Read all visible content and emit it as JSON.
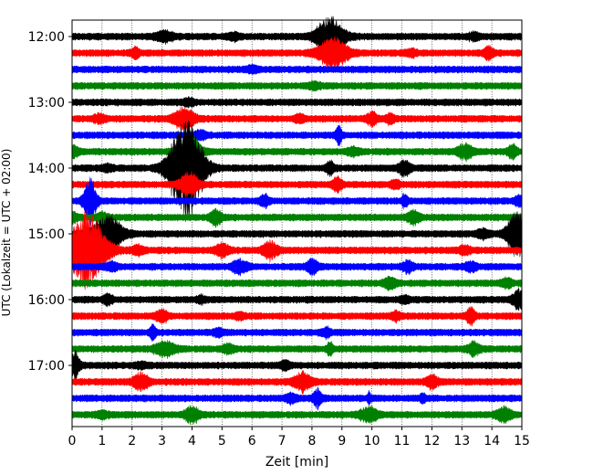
{
  "chart_data": {
    "type": "line",
    "title": "",
    "xlabel": "Zeit  [min]",
    "ylabel": "UTC (Lokalzeit = UTC + 02:00)",
    "xlim": [
      0,
      15
    ],
    "x_ticks": [
      "0",
      "1",
      "2",
      "3",
      "4",
      "5",
      "6",
      "7",
      "8",
      "9",
      "10",
      "11",
      "12",
      "13",
      "14",
      "15"
    ],
    "y_ticks": [
      "12:00",
      "13:00",
      "14:00",
      "15:00",
      "16:00",
      "17:00"
    ],
    "grid": "vertical dotted lines at each minute",
    "trace_colors": [
      "#000000",
      "#ff0000",
      "#0000ff",
      "#008000"
    ],
    "rows_per_hour": 4,
    "start_time": "12:00",
    "end_time": "17:45",
    "traces": [
      {
        "row": 0,
        "time": "12:00",
        "color": "#000000",
        "events": [
          [
            3.1,
            0.25,
            0.3
          ],
          [
            8.6,
            1.0,
            0.45
          ],
          [
            5.4,
            0.15,
            0.2
          ],
          [
            13.4,
            0.15,
            0.2
          ]
        ]
      },
      {
        "row": 1,
        "time": "12:15",
        "color": "#ff0000",
        "events": [
          [
            8.7,
            0.75,
            0.5
          ],
          [
            2.1,
            0.25,
            0.15
          ],
          [
            11.3,
            0.15,
            0.2
          ],
          [
            13.9,
            0.3,
            0.15
          ]
        ]
      },
      {
        "row": 2,
        "time": "12:30",
        "color": "#0000ff",
        "events": [
          [
            6.0,
            0.15,
            0.2
          ]
        ]
      },
      {
        "row": 3,
        "time": "12:45",
        "color": "#008000",
        "events": [
          [
            8.1,
            0.15,
            0.2
          ]
        ]
      },
      {
        "row": 4,
        "time": "13:00",
        "color": "#000000",
        "events": [
          [
            3.9,
            0.15,
            0.2
          ]
        ]
      },
      {
        "row": 5,
        "time": "13:15",
        "color": "#ff0000",
        "events": [
          [
            3.75,
            0.55,
            0.35
          ],
          [
            10.0,
            0.35,
            0.15
          ],
          [
            10.6,
            0.2,
            0.15
          ],
          [
            0.9,
            0.2,
            0.2
          ],
          [
            7.6,
            0.2,
            0.15
          ]
        ]
      },
      {
        "row": 6,
        "time": "13:30",
        "color": "#0000ff",
        "events": [
          [
            8.9,
            0.45,
            0.1
          ],
          [
            4.3,
            0.2,
            0.2
          ]
        ]
      },
      {
        "row": 7,
        "time": "13:45",
        "color": "#008000",
        "events": [
          [
            3.9,
            1.0,
            0.35
          ],
          [
            13.1,
            0.4,
            0.25
          ],
          [
            14.7,
            0.35,
            0.15
          ],
          [
            9.4,
            0.2,
            0.2
          ],
          [
            0.0,
            0.3,
            0.2
          ]
        ]
      },
      {
        "row": 8,
        "time": "14:00",
        "color": "#000000",
        "events": [
          [
            3.8,
            2.6,
            0.55
          ],
          [
            8.6,
            0.35,
            0.15
          ],
          [
            11.1,
            0.35,
            0.2
          ],
          [
            1.2,
            0.15,
            0.2
          ]
        ]
      },
      {
        "row": 9,
        "time": "14:15",
        "color": "#ff0000",
        "events": [
          [
            3.9,
            0.6,
            0.3
          ],
          [
            8.85,
            0.35,
            0.15
          ],
          [
            10.8,
            0.2,
            0.15
          ]
        ]
      },
      {
        "row": 10,
        "time": "14:30",
        "color": "#0000ff",
        "events": [
          [
            0.6,
            1.2,
            0.2
          ],
          [
            6.4,
            0.3,
            0.15
          ],
          [
            11.1,
            0.35,
            0.1
          ],
          [
            14.9,
            0.25,
            0.15
          ]
        ]
      },
      {
        "row": 11,
        "time": "14:45",
        "color": "#008000",
        "events": [
          [
            4.8,
            0.35,
            0.2
          ],
          [
            11.4,
            0.3,
            0.2
          ],
          [
            1.0,
            0.2,
            0.2
          ],
          [
            0.0,
            0.2,
            0.2
          ]
        ]
      },
      {
        "row": 12,
        "time": "15:00",
        "color": "#000000",
        "events": [
          [
            1.2,
            0.9,
            0.5
          ],
          [
            14.85,
            1.1,
            0.35
          ],
          [
            13.7,
            0.2,
            0.2
          ]
        ]
      },
      {
        "row": 13,
        "time": "15:15",
        "color": "#ff0000",
        "events": [
          [
            0.5,
            2.0,
            0.6
          ],
          [
            6.6,
            0.4,
            0.25
          ],
          [
            5.0,
            0.3,
            0.25
          ],
          [
            13.1,
            0.2,
            0.2
          ],
          [
            2.2,
            0.2,
            0.2
          ]
        ]
      },
      {
        "row": 14,
        "time": "15:30",
        "color": "#0000ff",
        "events": [
          [
            5.6,
            0.35,
            0.25
          ],
          [
            8.0,
            0.35,
            0.2
          ],
          [
            11.2,
            0.25,
            0.2
          ],
          [
            13.3,
            0.2,
            0.2
          ],
          [
            1.3,
            0.2,
            0.2
          ]
        ]
      },
      {
        "row": 15,
        "time": "15:45",
        "color": "#008000",
        "events": [
          [
            10.6,
            0.3,
            0.2
          ],
          [
            14.5,
            0.2,
            0.2
          ]
        ]
      },
      {
        "row": 16,
        "time": "16:00",
        "color": "#000000",
        "events": [
          [
            1.2,
            0.3,
            0.15
          ],
          [
            14.9,
            0.5,
            0.2
          ],
          [
            4.3,
            0.15,
            0.15
          ],
          [
            11.1,
            0.15,
            0.15
          ]
        ]
      },
      {
        "row": 17,
        "time": "16:15",
        "color": "#ff0000",
        "events": [
          [
            3.0,
            0.3,
            0.2
          ],
          [
            13.3,
            0.4,
            0.15
          ],
          [
            10.8,
            0.2,
            0.15
          ],
          [
            5.6,
            0.15,
            0.15
          ]
        ]
      },
      {
        "row": 18,
        "time": "16:30",
        "color": "#0000ff",
        "events": [
          [
            2.7,
            0.35,
            0.1
          ],
          [
            8.5,
            0.2,
            0.15
          ],
          [
            4.9,
            0.15,
            0.2
          ]
        ]
      },
      {
        "row": 19,
        "time": "16:45",
        "color": "#008000",
        "events": [
          [
            3.1,
            0.35,
            0.35
          ],
          [
            13.4,
            0.3,
            0.2
          ],
          [
            8.6,
            0.35,
            0.1
          ],
          [
            5.2,
            0.2,
            0.2
          ]
        ]
      },
      {
        "row": 20,
        "time": "17:00",
        "color": "#000000",
        "events": [
          [
            0.1,
            0.7,
            0.15
          ],
          [
            2.3,
            0.15,
            0.2
          ],
          [
            7.1,
            0.2,
            0.2
          ]
        ]
      },
      {
        "row": 21,
        "time": "17:15",
        "color": "#ff0000",
        "events": [
          [
            2.3,
            0.45,
            0.25
          ],
          [
            7.7,
            0.45,
            0.3
          ],
          [
            12.0,
            0.35,
            0.2
          ]
        ]
      },
      {
        "row": 22,
        "time": "17:30",
        "color": "#0000ff",
        "events": [
          [
            8.2,
            0.45,
            0.15
          ],
          [
            7.3,
            0.2,
            0.2
          ],
          [
            9.9,
            0.3,
            0.05
          ],
          [
            11.7,
            0.2,
            0.1
          ]
        ]
      },
      {
        "row": 23,
        "time": "17:45",
        "color": "#008000",
        "events": [
          [
            4.0,
            0.4,
            0.25
          ],
          [
            9.9,
            0.35,
            0.3
          ],
          [
            14.4,
            0.35,
            0.25
          ],
          [
            1.0,
            0.15,
            0.2
          ]
        ]
      }
    ]
  }
}
